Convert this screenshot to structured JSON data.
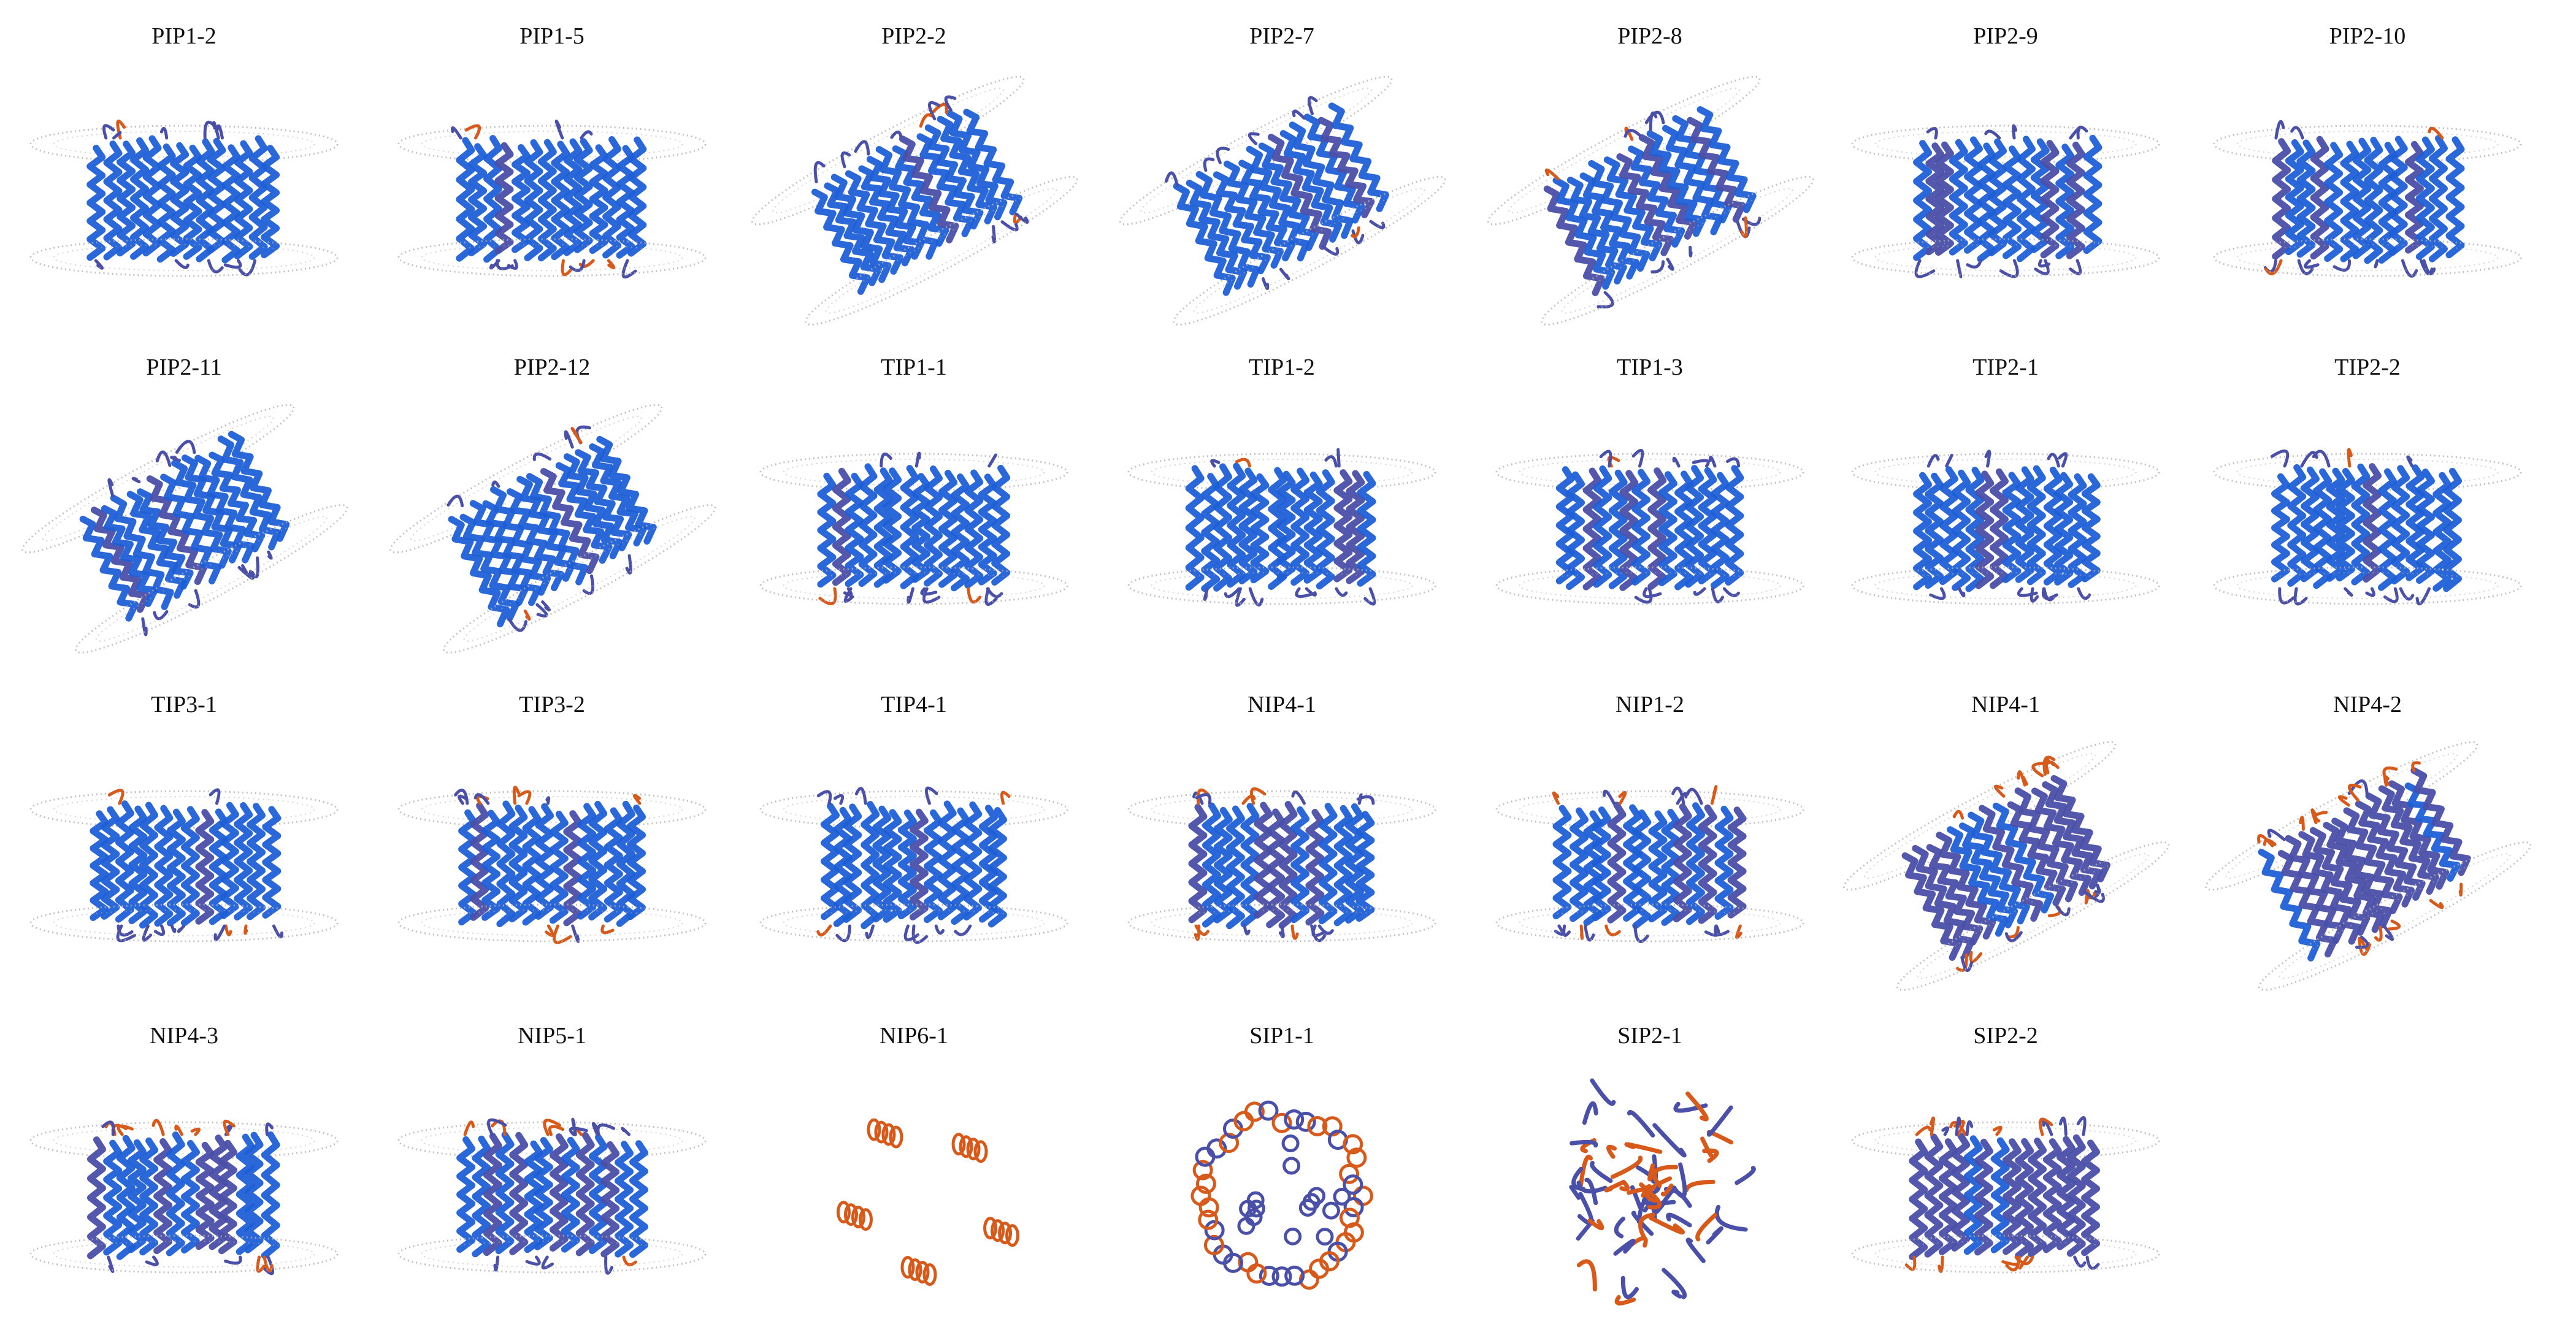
{
  "colors": {
    "high_confidence": "#1f5fd6",
    "mid_confidence": "#4a4fa8",
    "low_confidence": "#d85a1a",
    "membrane": "#b0b0b0"
  },
  "panels": [
    {
      "label": "PIP1-2",
      "orientation": "horizontal",
      "style": "bundle"
    },
    {
      "label": "PIP1-5",
      "orientation": "horizontal",
      "style": "bundle"
    },
    {
      "label": "PIP2-2",
      "orientation": "tilted-up",
      "style": "bundle"
    },
    {
      "label": "PIP2-7",
      "orientation": "tilted-up",
      "style": "bundle"
    },
    {
      "label": "PIP2-8",
      "orientation": "tilted-up",
      "style": "bundle"
    },
    {
      "label": "PIP2-9",
      "orientation": "horizontal",
      "style": "bundle"
    },
    {
      "label": "PIP2-10",
      "orientation": "horizontal",
      "style": "bundle"
    },
    {
      "label": "PIP2-11",
      "orientation": "tilted-up",
      "style": "bundle"
    },
    {
      "label": "PIP2-12",
      "orientation": "tilted-up",
      "style": "bundle"
    },
    {
      "label": "TIP1-1",
      "orientation": "horizontal",
      "style": "bundle"
    },
    {
      "label": "TIP1-2",
      "orientation": "horizontal",
      "style": "bundle"
    },
    {
      "label": "TIP1-3",
      "orientation": "horizontal",
      "style": "bundle"
    },
    {
      "label": "TIP2-1",
      "orientation": "horizontal",
      "style": "bundle"
    },
    {
      "label": "TIP2-2",
      "orientation": "horizontal",
      "style": "bundle"
    },
    {
      "label": "TIP3-1",
      "orientation": "horizontal",
      "style": "bundle"
    },
    {
      "label": "TIP3-2",
      "orientation": "horizontal",
      "style": "bundle"
    },
    {
      "label": "TIP4-1",
      "orientation": "horizontal",
      "style": "bundle"
    },
    {
      "label": "NIP4-1",
      "orientation": "horizontal",
      "style": "bundle-mixed"
    },
    {
      "label": "NIP1-2",
      "orientation": "horizontal",
      "style": "bundle-mixed"
    },
    {
      "label": "NIP4-1",
      "orientation": "tilted-up",
      "style": "bundle-low"
    },
    {
      "label": "NIP4-2",
      "orientation": "tilted-up",
      "style": "bundle-low"
    },
    {
      "label": "NIP4-3",
      "orientation": "horizontal",
      "style": "bundle-mixed"
    },
    {
      "label": "NIP5-1",
      "orientation": "horizontal",
      "style": "bundle-mixed"
    },
    {
      "label": "NIP6-1",
      "orientation": "top-view",
      "style": "scattered-helices"
    },
    {
      "label": "SIP1-1",
      "orientation": "top-view",
      "style": "ring"
    },
    {
      "label": "SIP2-1",
      "orientation": "none",
      "style": "globular"
    },
    {
      "label": "SIP2-2",
      "orientation": "horizontal",
      "style": "bundle-low"
    }
  ]
}
